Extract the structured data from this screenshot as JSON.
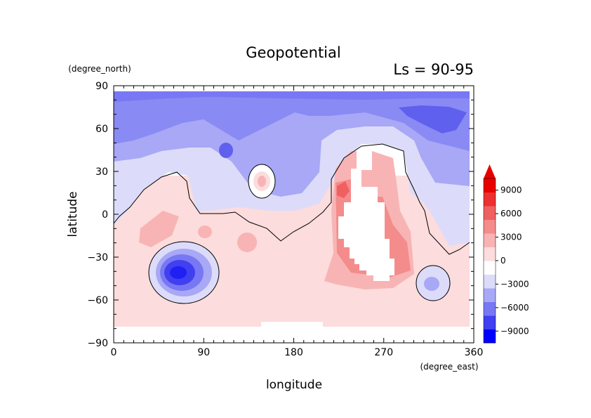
{
  "chart_data": {
    "type": "heatmap",
    "title": "Geopotential",
    "subtitle": "Ls = 90-95",
    "xlabel": "longitude",
    "ylabel": "latitude",
    "x_units": "(degree_east)",
    "y_units": "(degree_north)",
    "xlim": [
      0,
      360
    ],
    "ylim": [
      -90,
      90
    ],
    "x_ticks": [
      0,
      90,
      180,
      270,
      360
    ],
    "y_ticks": [
      -90,
      -60,
      -30,
      0,
      30,
      60,
      90
    ],
    "colorbar": {
      "levels": [
        -9000,
        -6000,
        -3000,
        0,
        3000,
        6000,
        9000
      ],
      "labels": [
        "-9000",
        "-6000",
        "-3000",
        "0",
        "3000",
        "6000",
        "9000"
      ],
      "colors": [
        "#0000ff",
        "#4040f0",
        "#7878f4",
        "#a8a8f6",
        "#dcdcfa",
        "#ffffff",
        "#fcdcdc",
        "#f8b4b4",
        "#f48c8c",
        "#f06060",
        "#ec3030",
        "#e80000"
      ],
      "extend": "max"
    },
    "approx_field_features": [
      {
        "feature": "low",
        "lon": 70,
        "lat": -40,
        "value": -9000
      },
      {
        "feature": "low",
        "lon": 320,
        "lat": 60,
        "value": -6000
      },
      {
        "feature": "low",
        "lon": 110,
        "lat": 45,
        "value": -6000
      },
      {
        "feature": "low",
        "lon": 320,
        "lat": -50,
        "value": -3000
      },
      {
        "feature": "high",
        "lon": 230,
        "lat": 18,
        "value": 3000
      },
      {
        "feature": "high",
        "lon": 150,
        "lat": 22,
        "value": 1000
      },
      {
        "feature": "missing",
        "lon": 250,
        "lat": 5,
        "value": null
      },
      {
        "feature": "missing",
        "lon": 180,
        "lat": -80,
        "value": null
      }
    ],
    "zero_contour": true
  }
}
